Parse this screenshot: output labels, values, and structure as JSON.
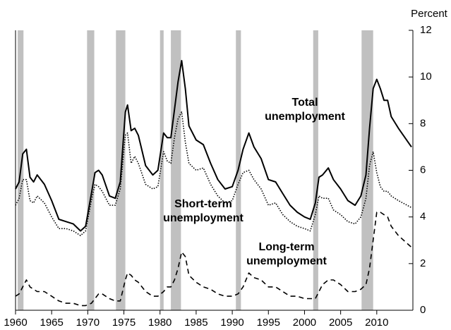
{
  "chart_data": {
    "type": "line",
    "y_label": "Percent",
    "xlim": [
      1960,
      2015
    ],
    "xticks": [
      1960,
      1965,
      1970,
      1975,
      1980,
      1985,
      1990,
      1995,
      2000,
      2005,
      2010
    ],
    "ylim": [
      0,
      12
    ],
    "yticks": [
      0,
      2,
      4,
      6,
      8,
      10,
      12
    ],
    "recession_color": "#c0c0c0",
    "recessions": [
      [
        1960.3,
        1961.1
      ],
      [
        1969.9,
        1970.9
      ],
      [
        1973.9,
        1975.2
      ],
      [
        1980.0,
        1980.5
      ],
      [
        1981.5,
        1982.9
      ],
      [
        1990.5,
        1991.2
      ],
      [
        2001.2,
        2001.9
      ],
      [
        2007.9,
        2009.5
      ]
    ],
    "x": [
      1960.0,
      1960.5,
      1961.0,
      1961.5,
      1962.0,
      1962.5,
      1963.0,
      1964.0,
      1965.0,
      1966.0,
      1967.0,
      1968.0,
      1969.0,
      1969.7,
      1970.5,
      1971.0,
      1971.5,
      1972.0,
      1973.0,
      1973.8,
      1974.5,
      1975.2,
      1975.5,
      1976.0,
      1976.5,
      1977.0,
      1978.0,
      1979.0,
      1979.7,
      1980.5,
      1981.0,
      1981.5,
      1982.0,
      1982.5,
      1983.0,
      1983.5,
      1984.0,
      1985.0,
      1986.0,
      1987.0,
      1988.0,
      1989.0,
      1990.0,
      1990.8,
      1991.5,
      1992.3,
      1993.0,
      1994.0,
      1995.0,
      1996.0,
      1997.0,
      1998.0,
      1999.0,
      2000.0,
      2000.8,
      2001.5,
      2002.0,
      2002.5,
      2003.3,
      2004.0,
      2005.0,
      2006.0,
      2007.0,
      2007.8,
      2008.5,
      2009.0,
      2009.5,
      2010.0,
      2010.5,
      2011.0,
      2011.5,
      2012.0,
      2013.0,
      2014.8
    ],
    "series": [
      {
        "color": "#000000",
        "dash": "none",
        "values": [
          5.2,
          5.5,
          6.7,
          6.9,
          5.7,
          5.5,
          5.8,
          5.4,
          4.7,
          3.9,
          3.8,
          3.7,
          3.4,
          3.6,
          5.0,
          5.9,
          6.0,
          5.8,
          4.9,
          4.8,
          5.5,
          8.5,
          8.8,
          7.7,
          7.8,
          7.5,
          6.2,
          5.8,
          6.0,
          7.6,
          7.4,
          7.4,
          8.6,
          9.8,
          10.7,
          9.5,
          7.9,
          7.3,
          7.1,
          6.3,
          5.6,
          5.2,
          5.3,
          6.0,
          6.9,
          7.6,
          7.0,
          6.5,
          5.6,
          5.5,
          5.0,
          4.5,
          4.2,
          4.0,
          3.9,
          4.6,
          5.7,
          5.8,
          6.1,
          5.6,
          5.2,
          4.7,
          4.5,
          4.9,
          5.8,
          7.8,
          9.5,
          9.9,
          9.5,
          9.0,
          9.0,
          8.3,
          7.8,
          7.0
        ]
      },
      {
        "color": "#000000",
        "dash": "1.5 2",
        "values": [
          4.5,
          4.8,
          5.6,
          5.6,
          4.7,
          4.6,
          4.9,
          4.6,
          4.0,
          3.5,
          3.5,
          3.4,
          3.2,
          3.4,
          4.7,
          5.4,
          5.3,
          5.1,
          4.5,
          4.5,
          5.2,
          7.5,
          7.6,
          6.3,
          6.6,
          6.3,
          5.4,
          5.2,
          5.3,
          6.8,
          6.4,
          6.3,
          7.4,
          8.2,
          8.5,
          7.2,
          6.3,
          6.0,
          6.1,
          5.4,
          4.9,
          4.6,
          4.7,
          5.4,
          5.9,
          6.0,
          5.6,
          5.2,
          4.5,
          4.6,
          4.1,
          3.8,
          3.6,
          3.5,
          3.4,
          4.1,
          4.9,
          4.8,
          4.8,
          4.3,
          4.1,
          3.8,
          3.7,
          4.0,
          4.8,
          6.2,
          6.8,
          5.9,
          5.3,
          5.1,
          5.1,
          4.9,
          4.7,
          4.4
        ]
      },
      {
        "color": "#000000",
        "dash": "7 5",
        "values": [
          0.6,
          0.7,
          1.0,
          1.3,
          1.0,
          0.9,
          0.8,
          0.8,
          0.6,
          0.4,
          0.3,
          0.3,
          0.2,
          0.2,
          0.3,
          0.5,
          0.7,
          0.7,
          0.5,
          0.4,
          0.4,
          1.3,
          1.6,
          1.5,
          1.3,
          1.2,
          0.8,
          0.6,
          0.6,
          0.8,
          1.0,
          1.0,
          1.3,
          1.8,
          2.5,
          2.3,
          1.5,
          1.2,
          1.0,
          0.9,
          0.7,
          0.6,
          0.6,
          0.7,
          1.0,
          1.6,
          1.4,
          1.3,
          1.0,
          1.0,
          0.8,
          0.6,
          0.6,
          0.5,
          0.5,
          0.5,
          0.8,
          1.1,
          1.3,
          1.3,
          1.1,
          0.8,
          0.8,
          0.9,
          1.1,
          1.8,
          3.0,
          4.2,
          4.2,
          4.1,
          4.0,
          3.6,
          3.2,
          2.7
        ]
      }
    ],
    "annotations": [
      [
        "Total",
        "unemployment"
      ],
      [
        "Short-term",
        "unemployment"
      ],
      [
        "Long-term",
        "unemployment"
      ]
    ]
  }
}
